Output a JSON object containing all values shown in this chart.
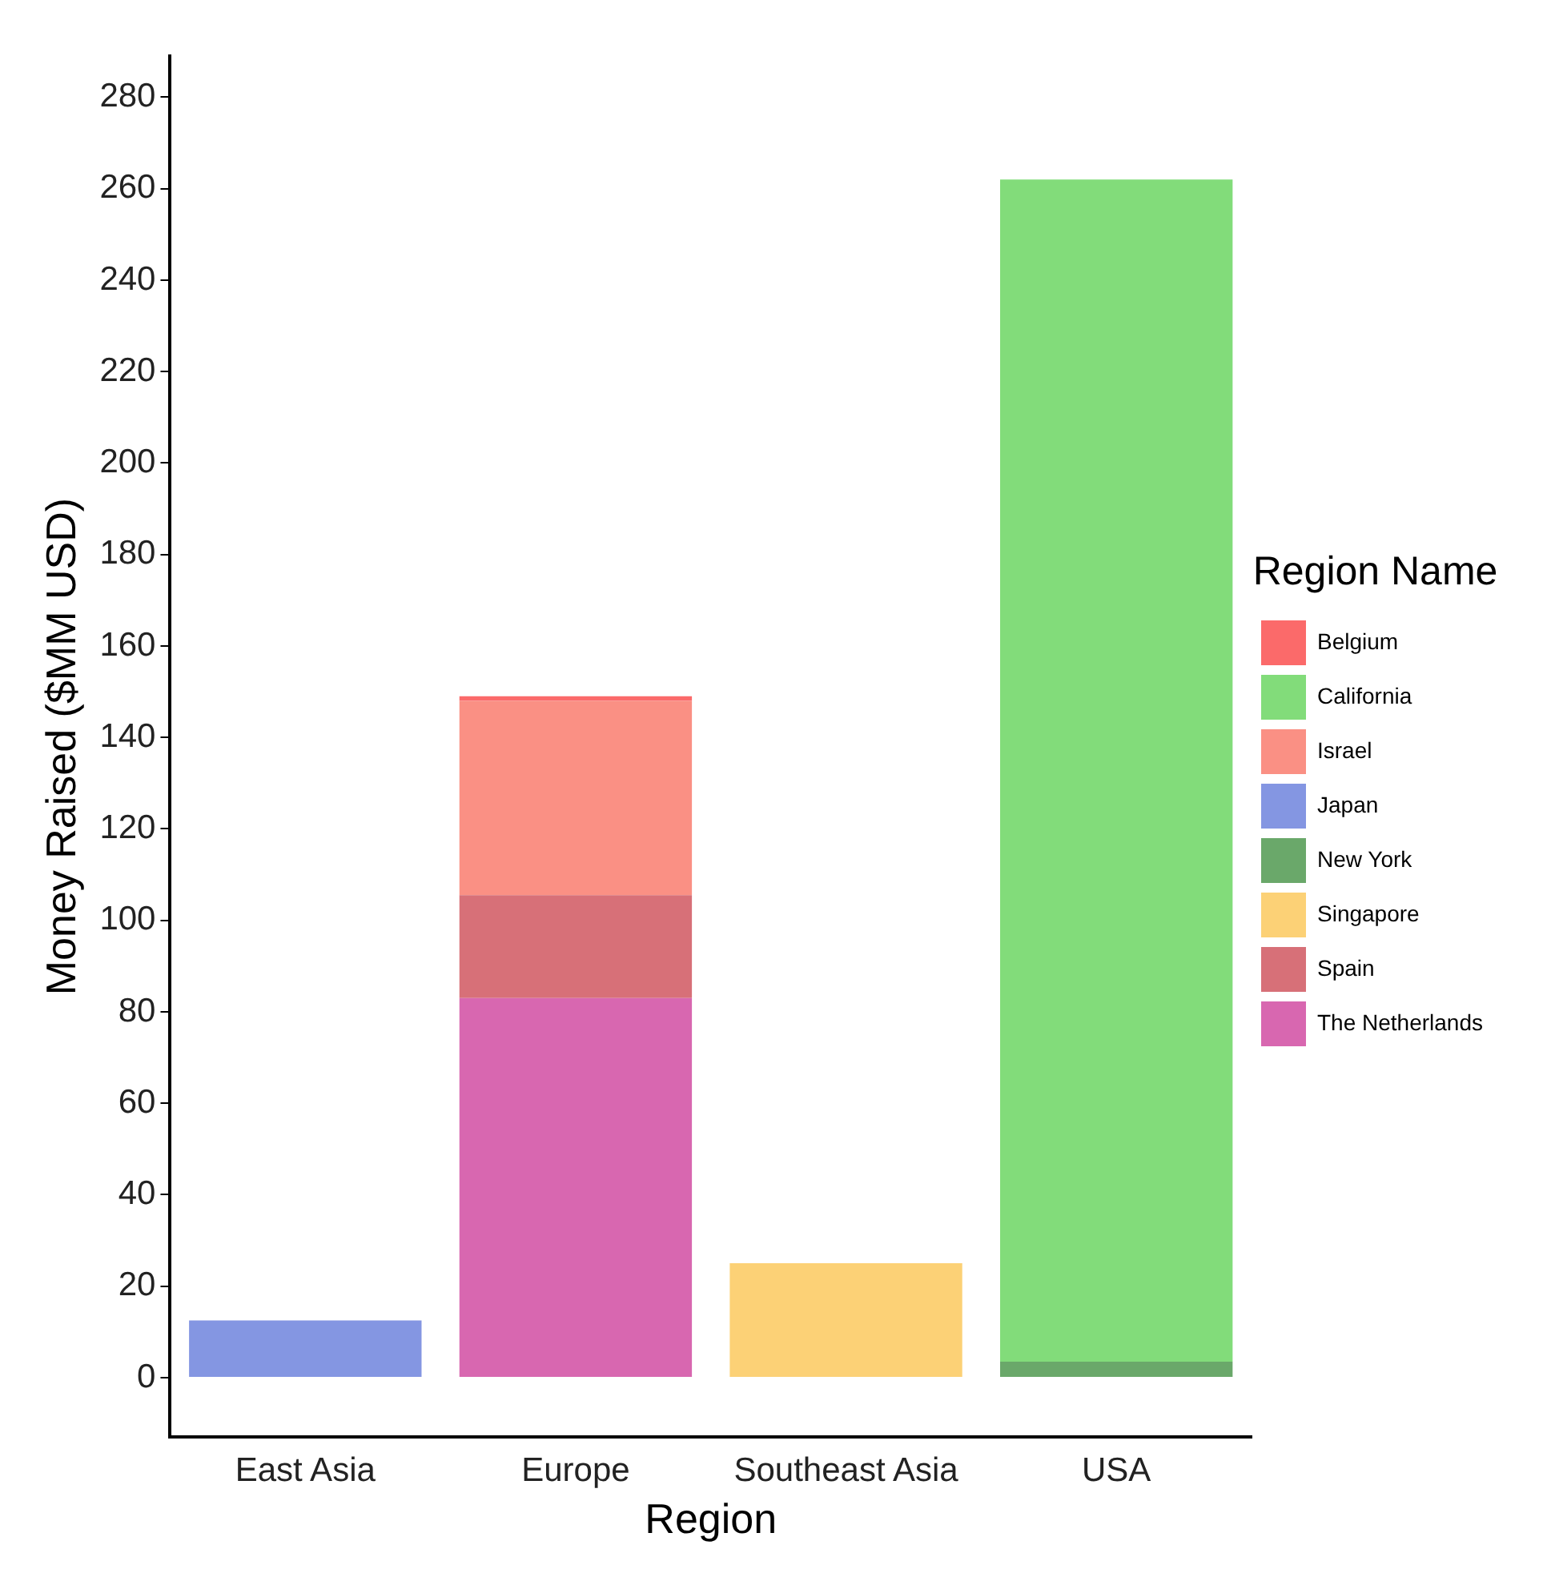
{
  "chart_data": {
    "type": "bar",
    "xlabel": "Region",
    "ylabel": "Money Raised ($MM USD)",
    "legend_title": "Region Name",
    "legend": "right",
    "stacked": true,
    "grid": false,
    "categories": [
      "East Asia",
      "Europe",
      "Southeast Asia",
      "USA"
    ],
    "ylim": [
      -13,
      289
    ],
    "yticks": [
      0,
      20,
      40,
      60,
      80,
      100,
      120,
      140,
      160,
      180,
      200,
      220,
      240,
      260,
      280
    ],
    "series": [
      {
        "name": "The Netherlands",
        "color": "#d867b0",
        "values": [
          null,
          83,
          null,
          null
        ]
      },
      {
        "name": "Spain",
        "color": "#d77078",
        "values": [
          null,
          22.5,
          null,
          null
        ]
      },
      {
        "name": "Singapore",
        "color": "#fcd176",
        "values": [
          null,
          null,
          25,
          null
        ]
      },
      {
        "name": "New York",
        "color": "#6aa86a",
        "values": [
          null,
          null,
          null,
          3.5
        ]
      },
      {
        "name": "Japan",
        "color": "#8496e2",
        "values": [
          12.5,
          null,
          null,
          null
        ]
      },
      {
        "name": "Israel",
        "color": "#fa9084",
        "values": [
          null,
          42.5,
          null,
          null
        ]
      },
      {
        "name": "California",
        "color": "#82dc7a",
        "values": [
          null,
          null,
          null,
          258.5
        ]
      },
      {
        "name": "Belgium",
        "color": "#fb6a6a",
        "values": [
          null,
          1,
          null,
          null
        ]
      }
    ]
  }
}
